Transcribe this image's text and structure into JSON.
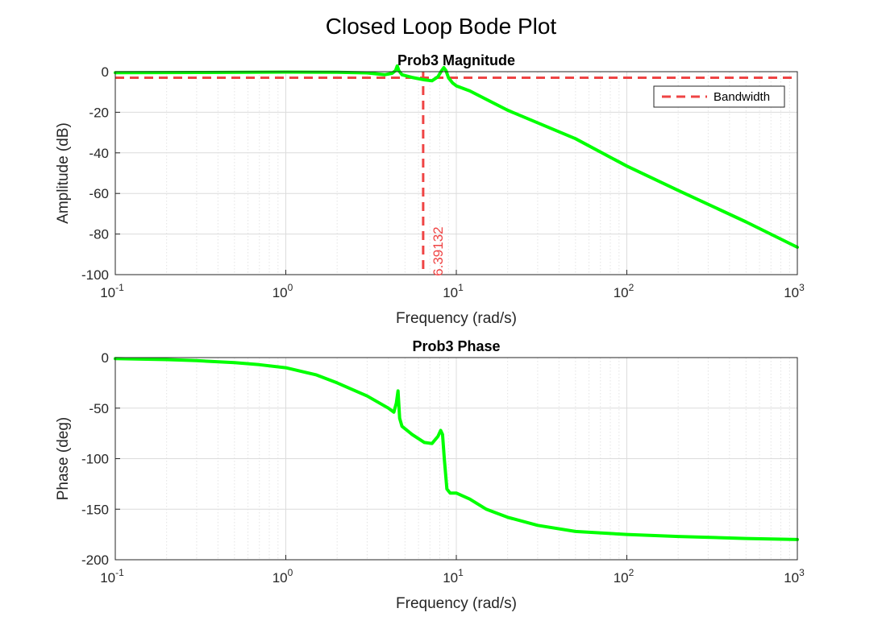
{
  "figure": {
    "title": "Closed Loop Bode Plot",
    "colors": {
      "curve": "#00ff00",
      "bandwidth": "#ef4444",
      "axis": "#262626"
    }
  },
  "chart_data": [
    {
      "type": "line",
      "title": "Prob3 Magnitude",
      "xlabel": "Frequency (rad/s)",
      "ylabel": "Amplitude (dB)",
      "xscale": "log",
      "xlim": [
        0.1,
        1000
      ],
      "ylim": [
        -100,
        0
      ],
      "x_ticks": [
        {
          "base": "10",
          "exp": "-1",
          "value": 0.1
        },
        {
          "base": "10",
          "exp": "0",
          "value": 1
        },
        {
          "base": "10",
          "exp": "1",
          "value": 10
        },
        {
          "base": "10",
          "exp": "2",
          "value": 100
        },
        {
          "base": "10",
          "exp": "3",
          "value": 1000
        }
      ],
      "y_ticks": [
        "0",
        "-20",
        "-40",
        "-60",
        "-80",
        "-100"
      ],
      "grid": true,
      "series": [
        {
          "x": [
            0.1,
            0.3,
            1.0,
            2.0,
            3.0,
            3.8,
            4.2,
            4.4,
            4.5,
            4.6,
            4.8,
            5.5,
            6.5,
            7.2,
            7.8,
            8.2,
            8.45,
            8.7,
            9.0,
            9.5,
            10,
            12,
            20,
            50,
            100,
            200,
            500,
            1000
          ],
          "y": [
            -0.5,
            -0.4,
            -0.2,
            -0.3,
            -0.6,
            -1.5,
            -0.8,
            0.5,
            2.8,
            0.5,
            -1.5,
            -2.8,
            -4.0,
            -4.5,
            -2.5,
            0.5,
            2.0,
            0.5,
            -3.0,
            -5.5,
            -7.0,
            -9.5,
            -19.0,
            -33.0,
            -46.5,
            -58.5,
            -74.0,
            -86.5
          ]
        }
      ],
      "reference_lines": [
        {
          "orientation": "horizontal",
          "value": -3,
          "label": "Bandwidth"
        },
        {
          "orientation": "vertical",
          "value": 6.39132
        }
      ],
      "annotations": [
        {
          "text": "6.39132",
          "x": 6.39132,
          "y": -92
        }
      ],
      "legend": {
        "entries": [
          "Bandwidth"
        ],
        "placement": "top-right"
      }
    },
    {
      "type": "line",
      "title": "Prob3 Phase",
      "xlabel": "Frequency (rad/s)",
      "ylabel": "Phase (deg)",
      "xscale": "log",
      "xlim": [
        0.1,
        1000
      ],
      "ylim": [
        -200,
        0
      ],
      "x_ticks": [
        {
          "base": "10",
          "exp": "-1",
          "value": 0.1
        },
        {
          "base": "10",
          "exp": "0",
          "value": 1
        },
        {
          "base": "10",
          "exp": "1",
          "value": 10
        },
        {
          "base": "10",
          "exp": "2",
          "value": 100
        },
        {
          "base": "10",
          "exp": "3",
          "value": 1000
        }
      ],
      "y_ticks": [
        "0",
        "-50",
        "-100",
        "-150",
        "-200"
      ],
      "grid": true,
      "series": [
        {
          "x": [
            0.1,
            0.2,
            0.3,
            0.5,
            0.7,
            1.0,
            1.5,
            2.0,
            3.0,
            4.0,
            4.3,
            4.45,
            4.55,
            4.65,
            4.8,
            5.5,
            6.5,
            7.2,
            7.8,
            8.1,
            8.3,
            8.5,
            8.8,
            9.2,
            10,
            12,
            15,
            20,
            30,
            50,
            100,
            200,
            500,
            1000
          ],
          "y": [
            -1,
            -2,
            -3,
            -5,
            -7,
            -10,
            -17,
            -25,
            -38,
            -50,
            -54,
            -45,
            -33,
            -60,
            -68,
            -76,
            -84,
            -85,
            -78,
            -72,
            -76,
            -100,
            -130,
            -134,
            -134,
            -140,
            -150,
            -158,
            -166,
            -172,
            -175,
            -177,
            -179,
            -180
          ]
        }
      ],
      "grid_on": true
    }
  ]
}
